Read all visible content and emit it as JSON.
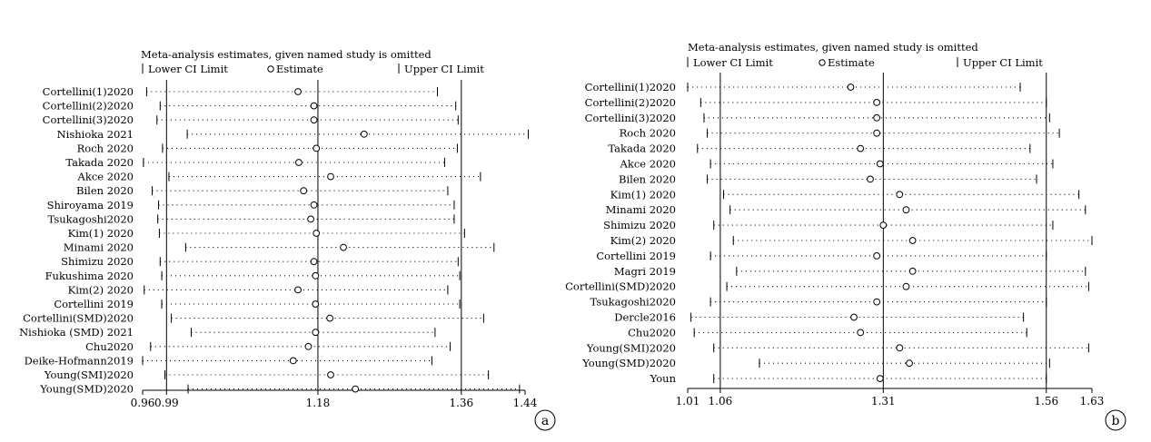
{
  "chart_data": [
    {
      "type": "scatter",
      "panel_label": "a",
      "title": "Meta-analysis estimates, given named study is omitted",
      "legend": {
        "lower": "Lower CI Limit",
        "estimate": "Estimate",
        "upper": "Upper CI Limit"
      },
      "x_ticks": [
        {
          "value": 0.96,
          "label": "0.96"
        },
        {
          "value": 0.99,
          "label": "0.99"
        },
        {
          "value": 1.18,
          "label": "1.18"
        },
        {
          "value": 1.36,
          "label": "1.36"
        },
        {
          "value": 1.44,
          "label": "1.44"
        }
      ],
      "xlim": [
        0.96,
        1.44
      ],
      "reference_lines": [
        0.99,
        1.18,
        1.36
      ],
      "rows": [
        {
          "study": "Cortellini(1)2020",
          "lower": 0.965,
          "estimate": 1.155,
          "upper": 1.33
        },
        {
          "study": "Cortellini(2)2020",
          "lower": 0.982,
          "estimate": 1.175,
          "upper": 1.353
        },
        {
          "study": "Cortellini(3)2020",
          "lower": 0.978,
          "estimate": 1.175,
          "upper": 1.356
        },
        {
          "study": "Nishioka 2021",
          "lower": 1.016,
          "estimate": 1.238,
          "upper": 1.444
        },
        {
          "study": "Roch 2020",
          "lower": 0.985,
          "estimate": 1.178,
          "upper": 1.355
        },
        {
          "study": "Takada 2020",
          "lower": 0.961,
          "estimate": 1.156,
          "upper": 1.339
        },
        {
          "study": "Akce 2020",
          "lower": 0.993,
          "estimate": 1.196,
          "upper": 1.384
        },
        {
          "study": "Bilen 2020",
          "lower": 0.972,
          "estimate": 1.162,
          "upper": 1.343
        },
        {
          "study": "Shiroyama 2019",
          "lower": 0.98,
          "estimate": 1.175,
          "upper": 1.351
        },
        {
          "study": "Tsukagoshi2020",
          "lower": 0.979,
          "estimate": 1.171,
          "upper": 1.351
        },
        {
          "study": "Kim(1) 2020",
          "lower": 0.981,
          "estimate": 1.178,
          "upper": 1.364
        },
        {
          "study": "Minami 2020",
          "lower": 1.014,
          "estimate": 1.212,
          "upper": 1.401
        },
        {
          "study": "Shimizu 2020",
          "lower": 0.982,
          "estimate": 1.175,
          "upper": 1.356
        },
        {
          "study": "Fukushima 2020",
          "lower": 0.984,
          "estimate": 1.177,
          "upper": 1.358
        },
        {
          "study": "Kim(2) 2020",
          "lower": 0.962,
          "estimate": 1.155,
          "upper": 1.343
        },
        {
          "study": "Cortellini 2019",
          "lower": 0.984,
          "estimate": 1.177,
          "upper": 1.358
        },
        {
          "study": "Cortellini(SMD)2020",
          "lower": 0.996,
          "estimate": 1.195,
          "upper": 1.388
        },
        {
          "study": "Nishioka (SMD) 2021",
          "lower": 1.021,
          "estimate": 1.177,
          "upper": 1.327
        },
        {
          "study": "Chu2020",
          "lower": 0.97,
          "estimate": 1.168,
          "upper": 1.346
        },
        {
          "study": "Deike-Hofmann2019",
          "lower": 0.96,
          "estimate": 1.149,
          "upper": 1.323
        },
        {
          "study": "Young(SMI)2020",
          "lower": 0.988,
          "estimate": 1.196,
          "upper": 1.394
        },
        {
          "study": "Young(SMD)2020",
          "lower": 1.017,
          "estimate": 1.227,
          "upper": 1.433
        }
      ]
    },
    {
      "type": "scatter",
      "panel_label": "b",
      "title": "Meta-analysis estimates, given named study is omitted",
      "legend": {
        "lower": "Lower CI Limit",
        "estimate": "Estimate",
        "upper": "Upper CI Limit"
      },
      "x_ticks": [
        {
          "value": 1.01,
          "label": "1.01"
        },
        {
          "value": 1.06,
          "label": "1.06"
        },
        {
          "value": 1.31,
          "label": "1.31"
        },
        {
          "value": 1.56,
          "label": "1.56"
        },
        {
          "value": 1.63,
          "label": "1.63"
        }
      ],
      "xlim": [
        1.01,
        1.63
      ],
      "reference_lines": [
        1.06,
        1.31,
        1.56
      ],
      "rows": [
        {
          "study": "Cortellini(1)2020",
          "lower": 1.01,
          "estimate": 1.26,
          "upper": 1.52
        },
        {
          "study": "Cortellini(2)2020",
          "lower": 1.03,
          "estimate": 1.3,
          "upper": 1.56
        },
        {
          "study": "Cortellini(3)2020",
          "lower": 1.035,
          "estimate": 1.3,
          "upper": 1.565
        },
        {
          "study": "Roch 2020",
          "lower": 1.04,
          "estimate": 1.3,
          "upper": 1.58
        },
        {
          "study": "Takada 2020",
          "lower": 1.025,
          "estimate": 1.275,
          "upper": 1.535
        },
        {
          "study": "Akce 2020",
          "lower": 1.045,
          "estimate": 1.305,
          "upper": 1.57
        },
        {
          "study": "Bilen 2020",
          "lower": 1.04,
          "estimate": 1.29,
          "upper": 1.545
        },
        {
          "study": "Kim(1) 2020",
          "lower": 1.065,
          "estimate": 1.335,
          "upper": 1.61
        },
        {
          "study": "Minami 2020",
          "lower": 1.075,
          "estimate": 1.345,
          "upper": 1.62
        },
        {
          "study": "Shimizu 2020",
          "lower": 1.05,
          "estimate": 1.31,
          "upper": 1.57
        },
        {
          "study": "Kim(2) 2020",
          "lower": 1.08,
          "estimate": 1.355,
          "upper": 1.63
        },
        {
          "study": "Cortellini 2019",
          "lower": 1.045,
          "estimate": 1.3,
          "upper": 1.56
        },
        {
          "study": "Magri 2019",
          "lower": 1.085,
          "estimate": 1.355,
          "upper": 1.62
        },
        {
          "study": "Cortellini(SMD)2020",
          "lower": 1.07,
          "estimate": 1.345,
          "upper": 1.625
        },
        {
          "study": "Tsukagoshi2020",
          "lower": 1.045,
          "estimate": 1.3,
          "upper": 1.56
        },
        {
          "study": "Dercle2016",
          "lower": 1.015,
          "estimate": 1.265,
          "upper": 1.525
        },
        {
          "study": "Chu2020",
          "lower": 1.02,
          "estimate": 1.275,
          "upper": 1.53
        },
        {
          "study": "Young(SMI)2020",
          "lower": 1.05,
          "estimate": 1.335,
          "upper": 1.625
        },
        {
          "study": "Young(SMD)2020",
          "lower": 1.12,
          "estimate": 1.35,
          "upper": 1.565
        },
        {
          "study": "Youn",
          "lower": 1.05,
          "estimate": 1.305,
          "upper": 1.56
        }
      ]
    }
  ]
}
